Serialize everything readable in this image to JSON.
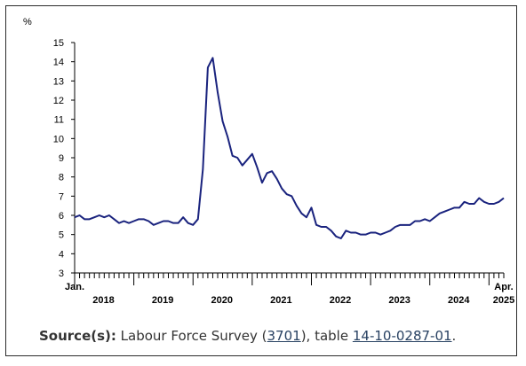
{
  "chart_data": {
    "type": "line",
    "ylabel": "%",
    "ylim": [
      3,
      15
    ],
    "y_ticks": [
      "3",
      "4",
      "5",
      "6",
      "7",
      "8",
      "9",
      "10",
      "11",
      "12",
      "13",
      "14",
      "15"
    ],
    "x_start_label": "Jan.",
    "x_end_label": "Apr.",
    "year_labels": [
      "2018",
      "2019",
      "2020",
      "2021",
      "2022",
      "2023",
      "2024",
      "2025"
    ],
    "grid": false,
    "series": [
      {
        "color": "#1a237e",
        "x": [
          "2018-01",
          "2018-02",
          "2018-03",
          "2018-04",
          "2018-05",
          "2018-06",
          "2018-07",
          "2018-08",
          "2018-09",
          "2018-10",
          "2018-11",
          "2018-12",
          "2019-01",
          "2019-02",
          "2019-03",
          "2019-04",
          "2019-05",
          "2019-06",
          "2019-07",
          "2019-08",
          "2019-09",
          "2019-10",
          "2019-11",
          "2019-12",
          "2020-01",
          "2020-02",
          "2020-03",
          "2020-04",
          "2020-05",
          "2020-06",
          "2020-07",
          "2020-08",
          "2020-09",
          "2020-10",
          "2020-11",
          "2020-12",
          "2021-01",
          "2021-02",
          "2021-03",
          "2021-04",
          "2021-05",
          "2021-06",
          "2021-07",
          "2021-08",
          "2021-09",
          "2021-10",
          "2021-11",
          "2021-12",
          "2022-01",
          "2022-02",
          "2022-03",
          "2022-04",
          "2022-05",
          "2022-06",
          "2022-07",
          "2022-08",
          "2022-09",
          "2022-10",
          "2022-11",
          "2022-12",
          "2023-01",
          "2023-02",
          "2023-03",
          "2023-04",
          "2023-05",
          "2023-06",
          "2023-07",
          "2023-08",
          "2023-09",
          "2023-10",
          "2023-11",
          "2023-12",
          "2024-01",
          "2024-02",
          "2024-03",
          "2024-04",
          "2024-05",
          "2024-06",
          "2024-07",
          "2024-08",
          "2024-09",
          "2024-10",
          "2024-11",
          "2024-12",
          "2025-01",
          "2025-02",
          "2025-03",
          "2025-04"
        ],
        "values": [
          5.9,
          6.0,
          5.8,
          5.8,
          5.9,
          6.0,
          5.9,
          6.0,
          5.8,
          5.6,
          5.7,
          5.6,
          5.7,
          5.8,
          5.8,
          5.7,
          5.5,
          5.6,
          5.7,
          5.7,
          5.6,
          5.6,
          5.9,
          5.6,
          5.5,
          5.8,
          8.4,
          13.7,
          14.2,
          12.4,
          10.9,
          10.1,
          9.1,
          9.0,
          8.6,
          8.9,
          9.2,
          8.5,
          7.7,
          8.2,
          8.3,
          7.9,
          7.4,
          7.1,
          7.0,
          6.5,
          6.1,
          5.9,
          6.4,
          5.5,
          5.4,
          5.4,
          5.2,
          4.9,
          4.8,
          5.2,
          5.1,
          5.1,
          5.0,
          5.0,
          5.1,
          5.1,
          5.0,
          5.1,
          5.2,
          5.4,
          5.5,
          5.5,
          5.5,
          5.7,
          5.7,
          5.8,
          5.7,
          5.9,
          6.1,
          6.2,
          6.3,
          6.4,
          6.4,
          6.7,
          6.6,
          6.6,
          6.9,
          6.7,
          6.6,
          6.6,
          6.7,
          6.9
        ]
      }
    ]
  },
  "source": {
    "label": "Source(s):",
    "text_before": "Labour Force Survey (",
    "link1": "3701",
    "text_middle": "), table ",
    "link2": "14-10-0287-01",
    "text_after": "."
  }
}
